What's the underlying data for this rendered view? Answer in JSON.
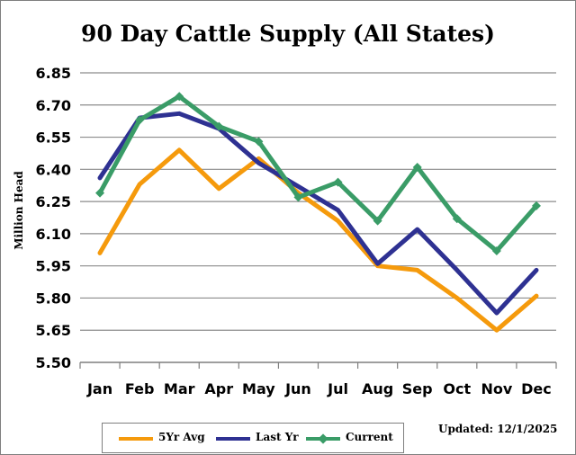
{
  "chart_data": {
    "type": "line",
    "title": "90 Day Cattle Supply (All States)",
    "ylabel": "Million Head",
    "xlabel": "",
    "categories": [
      "Jan",
      "Feb",
      "Mar",
      "Apr",
      "May",
      "Jun",
      "Jul",
      "Aug",
      "Sep",
      "Oct",
      "Nov",
      "Dec"
    ],
    "yticks": [
      "5.50",
      "5.65",
      "5.80",
      "5.95",
      "6.10",
      "6.25",
      "6.40",
      "6.55",
      "6.70",
      "6.85"
    ],
    "ylim": [
      5.5,
      6.85
    ],
    "grid": true,
    "legend_position": "bottom",
    "series": [
      {
        "name": "5Yr Avg",
        "color": "#f59a0c",
        "marker": "none",
        "values": [
          6.01,
          6.33,
          6.49,
          6.31,
          6.45,
          6.29,
          6.16,
          5.95,
          5.93,
          5.8,
          5.65,
          5.81
        ]
      },
      {
        "name": "Last Yr",
        "color": "#2e3192",
        "marker": "none",
        "values": [
          6.36,
          6.64,
          6.66,
          6.59,
          6.43,
          6.32,
          6.21,
          5.96,
          6.12,
          5.93,
          5.73,
          5.93
        ]
      },
      {
        "name": "Current",
        "color": "#3a9c67",
        "marker": "diamond",
        "values": [
          6.29,
          6.63,
          6.74,
          6.6,
          6.53,
          6.27,
          6.34,
          6.16,
          6.41,
          6.17,
          6.02,
          6.23
        ]
      }
    ]
  },
  "updated": "Updated: 12/1/2025"
}
